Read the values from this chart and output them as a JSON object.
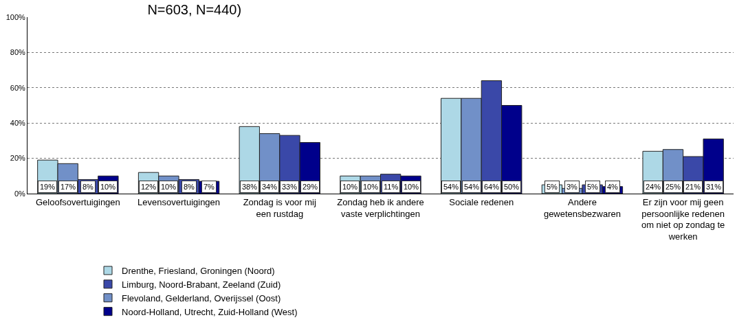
{
  "chart_data": {
    "type": "bar",
    "title": "N=603, N=440)",
    "categories": [
      "Geloofsovertuigingen",
      "Levensovertuigingen",
      "Zondag is voor mij\neen rustdag",
      "Zondag heb ik andere\nvaste verplichtingen",
      "Sociale redenen",
      "Andere\ngewetensbezwaren",
      "Er zijn voor mij geen\npersoonlijke redenen\nom niet op zondag te\nwerken"
    ],
    "series": [
      {
        "name": "Drenthe, Friesland, Groningen (Noord)",
        "color": "#add8e6",
        "values": [
          19,
          12,
          38,
          10,
          54,
          5,
          24
        ],
        "value_labels": [
          "19%",
          "12%",
          "38%",
          "10%",
          "54%",
          "5%",
          "24%"
        ]
      },
      {
        "name": "Flevoland, Gelderland, Overijssel (Oost)",
        "color": "#7190c8",
        "values": [
          17,
          10,
          34,
          10,
          54,
          3,
          25
        ],
        "value_labels": [
          "17%",
          "10%",
          "34%",
          "10%",
          "54%",
          "3%",
          "25%"
        ]
      },
      {
        "name": "Limburg, Noord-Brabant, Zeeland (Zuid)",
        "color": "#3a48a8",
        "values": [
          8,
          8,
          33,
          11,
          64,
          5,
          21
        ],
        "value_labels": [
          "8%",
          "8%",
          "33%",
          "11%",
          "64%",
          "5%",
          "21%"
        ]
      },
      {
        "name": "Noord-Holland, Utrecht, Zuid-Holland (West)",
        "color": "#00008b",
        "values": [
          10,
          7,
          29,
          10,
          50,
          4,
          31
        ],
        "value_labels": [
          "10%",
          "7%",
          "29%",
          "10%",
          "50%",
          "4%",
          "31%"
        ]
      }
    ],
    "ylim": [
      0,
      100
    ],
    "yticks": [
      {
        "value": 0,
        "label": "0%"
      },
      {
        "value": 20,
        "label": "20%"
      },
      {
        "value": 40,
        "label": "40%"
      },
      {
        "value": 60,
        "label": "60%"
      },
      {
        "value": 80,
        "label": "80%"
      },
      {
        "value": 100,
        "label": "100%"
      }
    ],
    "grid": "y",
    "legend": "bottom"
  }
}
